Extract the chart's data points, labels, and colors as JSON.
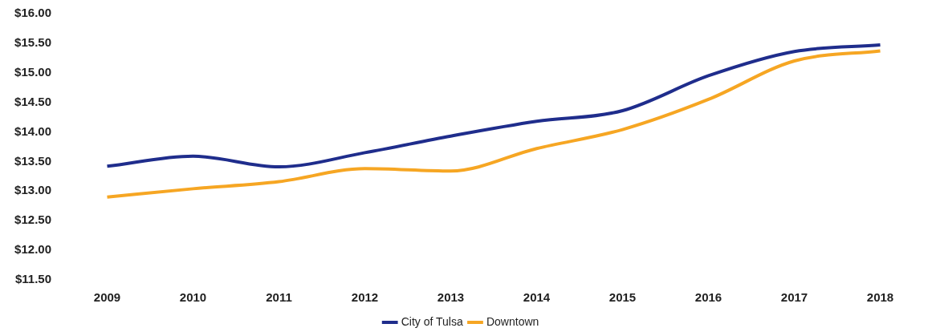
{
  "chart_data": {
    "type": "line",
    "categories": [
      "2009",
      "2010",
      "2011",
      "2012",
      "2013",
      "2014",
      "2015",
      "2016",
      "2017",
      "2018"
    ],
    "series": [
      {
        "name": "City of Tulsa",
        "color": "#1f2d8c",
        "values": [
          13.42,
          13.59,
          13.41,
          13.65,
          13.93,
          14.18,
          14.36,
          14.95,
          15.36,
          15.47
        ]
      },
      {
        "name": "Downtown",
        "color": "#f6a623",
        "values": [
          12.9,
          13.04,
          13.16,
          13.38,
          13.34,
          13.72,
          14.04,
          14.55,
          15.2,
          15.37
        ]
      }
    ],
    "ylim": [
      11.5,
      16
    ],
    "yticks": [
      {
        "value": 11.5,
        "label": "$11.50"
      },
      {
        "value": 12,
        "label": "$12.00"
      },
      {
        "value": 12.5,
        "label": "$12.50"
      },
      {
        "value": 13,
        "label": "$13.00"
      },
      {
        "value": 13.5,
        "label": "$13.50"
      },
      {
        "value": 14,
        "label": "$14.00"
      },
      {
        "value": 14.5,
        "label": "$14.50"
      },
      {
        "value": 15,
        "label": "$15.00"
      },
      {
        "value": 15.5,
        "label": "$15.50"
      },
      {
        "value": 16,
        "label": "$16.00"
      }
    ],
    "grid": false,
    "legend": "bottom",
    "marker": "none",
    "line_style": "solid"
  }
}
